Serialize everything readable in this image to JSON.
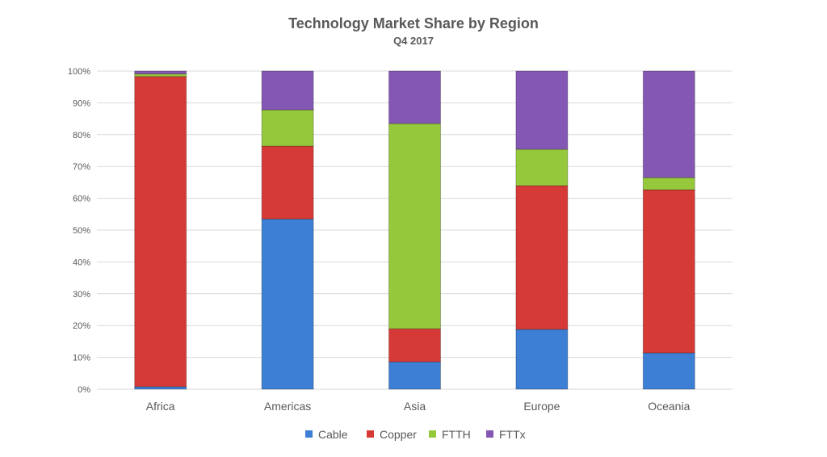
{
  "chart_data": {
    "type": "bar",
    "stacked": "percent",
    "title": "Technology Market Share by Region",
    "subtitle": "Q4 2017",
    "xlabel": "",
    "ylabel": "",
    "ylim": [
      0,
      100
    ],
    "yticks": [
      "0%",
      "10%",
      "20%",
      "30%",
      "40%",
      "50%",
      "60%",
      "70%",
      "80%",
      "90%",
      "100%"
    ],
    "grid": true,
    "legend_position": "bottom",
    "categories": [
      "Africa",
      "Americas",
      "Asia",
      "Europe",
      "Oceania"
    ],
    "series": [
      {
        "name": "Cable",
        "color": "#3c7fd4",
        "values": [
          0.8,
          53.5,
          8.6,
          18.8,
          11.4
        ]
      },
      {
        "name": "Copper",
        "color": "#d63a36",
        "values": [
          97.5,
          22.9,
          10.4,
          45.2,
          51.3
        ]
      },
      {
        "name": "FTTH",
        "color": "#96c83c",
        "values": [
          0.8,
          11.4,
          64.5,
          11.4,
          3.8
        ]
      },
      {
        "name": "FTTx",
        "color": "#8457b4",
        "values": [
          0.9,
          12.2,
          16.5,
          24.6,
          33.5
        ]
      }
    ]
  }
}
